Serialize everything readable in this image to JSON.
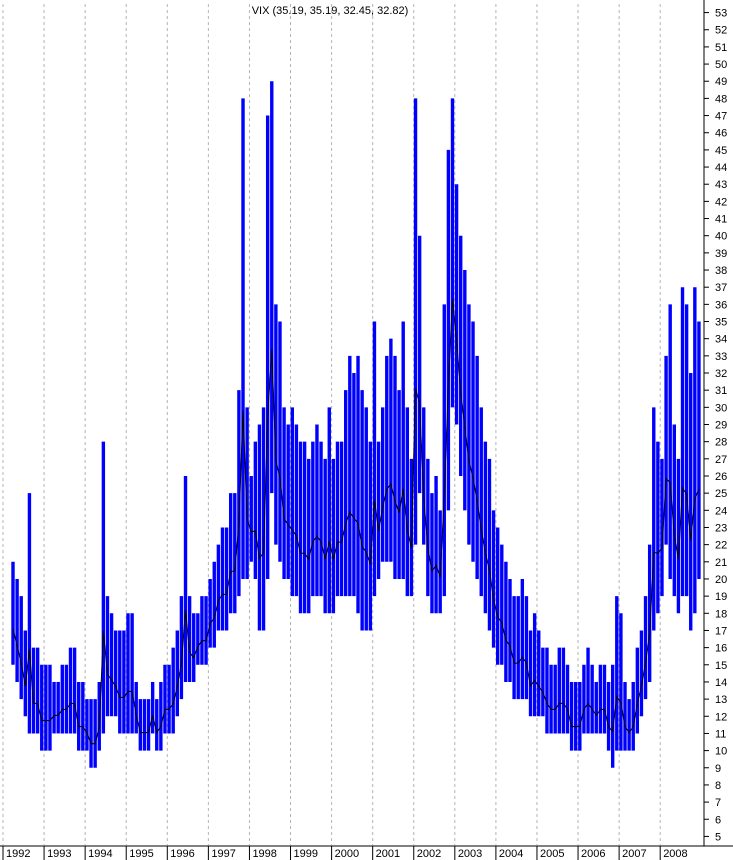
{
  "chart_data": {
    "type": "line",
    "title": "VIX (35.19, 35.19, 32.45, 32.82)",
    "xlabel": "",
    "ylabel": "",
    "grid": {
      "vertical": true,
      "horizontal": false
    },
    "y_axis_position": "right",
    "ylim": [
      4.5,
      53.5
    ],
    "y_ticks": [
      5,
      6,
      7,
      8,
      9,
      10,
      11,
      12,
      13,
      14,
      15,
      16,
      17,
      18,
      19,
      20,
      21,
      22,
      23,
      24,
      25,
      26,
      27,
      28,
      29,
      30,
      31,
      32,
      33,
      34,
      35,
      36,
      37,
      38,
      39,
      40,
      41,
      42,
      43,
      44,
      45,
      46,
      47,
      48,
      49,
      50,
      51,
      52,
      53
    ],
    "x_ticks": [
      "1992",
      "1993",
      "1994",
      "1995",
      "1996",
      "1997",
      "1998",
      "1999",
      "2000",
      "2001",
      "2002",
      "2003",
      "2004",
      "2005",
      "2006",
      "2007",
      "2008"
    ],
    "xlim": [
      1992.0,
      2008.75
    ],
    "colors": {
      "close_line": "#000000",
      "range_bars": "#0000ff",
      "grid": "#b4b4b4"
    },
    "series": [
      {
        "x": [
          1992.0,
          1992.1,
          1992.2,
          1992.3,
          1992.4,
          1992.5,
          1992.6,
          1992.7,
          1992.8,
          1992.9,
          1993.0,
          1993.1,
          1993.2,
          1993.3,
          1993.4,
          1993.5,
          1993.6,
          1993.7,
          1993.8,
          1993.9,
          1994.0,
          1994.1,
          1994.2,
          1994.3,
          1994.4,
          1994.5,
          1994.6,
          1994.7,
          1994.8,
          1994.9,
          1995.0,
          1995.1,
          1995.2,
          1995.3,
          1995.4,
          1995.5,
          1995.6,
          1995.7,
          1995.8,
          1995.9,
          1996.0,
          1996.1,
          1996.2,
          1996.3,
          1996.4,
          1996.5,
          1996.6,
          1996.7,
          1996.8,
          1996.9,
          1997.0,
          1997.1,
          1997.2,
          1997.3,
          1997.4,
          1997.5,
          1997.6,
          1997.7,
          1997.8,
          1997.9,
          1998.0,
          1998.1,
          1998.2,
          1998.3,
          1998.4,
          1998.5,
          1998.6,
          1998.7,
          1998.8,
          1998.9,
          1999.0,
          1999.1,
          1999.2,
          1999.3,
          1999.4,
          1999.5,
          1999.6,
          1999.7,
          1999.8,
          1999.9,
          2000.0,
          2000.1,
          2000.2,
          2000.3,
          2000.4,
          2000.5,
          2000.6,
          2000.7,
          2000.8,
          2000.9,
          2001.0,
          2001.1,
          2001.2,
          2001.3,
          2001.4,
          2001.5,
          2001.6,
          2001.7,
          2001.8,
          2001.9,
          2002.0,
          2002.1,
          2002.2,
          2002.3,
          2002.4,
          2002.5,
          2002.6,
          2002.7,
          2002.8,
          2002.9,
          2003.0,
          2003.1,
          2003.2,
          2003.3,
          2003.4,
          2003.5,
          2003.6,
          2003.7,
          2003.8,
          2003.9,
          2004.0,
          2004.1,
          2004.2,
          2004.3,
          2004.4,
          2004.5,
          2004.6,
          2004.7,
          2004.8,
          2004.9,
          2005.0,
          2005.1,
          2005.2,
          2005.3,
          2005.4,
          2005.5,
          2005.6,
          2005.7,
          2005.8,
          2005.9,
          2006.0,
          2006.1,
          2006.2,
          2006.3,
          2006.4,
          2006.5,
          2006.6,
          2006.7,
          2006.8,
          2006.9,
          2007.0,
          2007.1,
          2007.2,
          2007.3,
          2007.4,
          2007.5,
          2007.6,
          2007.7,
          2007.8,
          2007.9,
          2008.0,
          2008.1,
          2008.2,
          2008.3,
          2008.4,
          2008.5,
          2008.6,
          2008.7
        ],
        "high": [
          21,
          20,
          19,
          17,
          25,
          16,
          16,
          15,
          15,
          15,
          14,
          14,
          15,
          15,
          16,
          16,
          14,
          14,
          13,
          13,
          13,
          14,
          28,
          19,
          18,
          17,
          17,
          17,
          18,
          18,
          14,
          13,
          13,
          13,
          14,
          13,
          14,
          15,
          15,
          16,
          17,
          19,
          26,
          19,
          18,
          18,
          19,
          19,
          20,
          21,
          22,
          23,
          23,
          25,
          25,
          31,
          48,
          30,
          26,
          28,
          29,
          30,
          47,
          49,
          36,
          35,
          30,
          29,
          30,
          29,
          28,
          28,
          27,
          28,
          29,
          28,
          27,
          30,
          27,
          28,
          28,
          31,
          33,
          32,
          33,
          31,
          30,
          28,
          35,
          28,
          30,
          33,
          34,
          33,
          31,
          35,
          30,
          27,
          48,
          40,
          30,
          27,
          25,
          26,
          24,
          36,
          45,
          48,
          43,
          40,
          38,
          36,
          35,
          33,
          30,
          28,
          27,
          24,
          23,
          22,
          21,
          20,
          19,
          19,
          20,
          19,
          17,
          18,
          17,
          16,
          16,
          15,
          15,
          16,
          16,
          15,
          14,
          14,
          14,
          15,
          16,
          15,
          14,
          15,
          15,
          14,
          15,
          19,
          18,
          14,
          13,
          14,
          16,
          17,
          19,
          22,
          30,
          28,
          27,
          33,
          36,
          29,
          27,
          37,
          36,
          32,
          37,
          35
        ],
        "low": [
          15,
          14,
          13,
          12,
          11,
          11,
          11,
          10,
          10,
          10,
          11,
          11,
          11,
          11,
          11,
          11,
          10,
          10,
          10,
          9,
          9,
          10,
          11,
          12,
          12,
          12,
          11,
          11,
          11,
          11,
          11,
          10,
          10,
          10,
          11,
          10,
          10,
          11,
          11,
          11,
          12,
          13,
          14,
          14,
          14,
          15,
          15,
          15,
          16,
          16,
          17,
          17,
          17,
          18,
          18,
          19,
          20,
          20,
          21,
          20,
          17,
          17,
          20,
          25,
          22,
          21,
          20,
          20,
          19,
          19,
          18,
          18,
          18,
          19,
          19,
          19,
          18,
          18,
          18,
          19,
          19,
          19,
          19,
          19,
          18,
          17,
          17,
          17,
          19,
          20,
          21,
          21,
          21,
          20,
          20,
          20,
          19,
          19,
          22,
          25,
          22,
          19,
          18,
          18,
          18,
          19,
          24,
          30,
          29,
          26,
          24,
          22,
          21,
          20,
          19,
          18,
          17,
          16,
          15,
          15,
          14,
          14,
          13,
          13,
          13,
          13,
          12,
          12,
          12,
          12,
          11,
          11,
          11,
          11,
          11,
          11,
          10,
          10,
          10,
          11,
          11,
          11,
          11,
          11,
          11,
          10,
          9,
          10,
          10,
          10,
          10,
          10,
          11,
          12,
          13,
          14,
          17,
          18,
          19,
          22,
          20,
          19,
          18,
          19,
          19,
          17,
          18,
          20
        ]
      }
    ]
  }
}
